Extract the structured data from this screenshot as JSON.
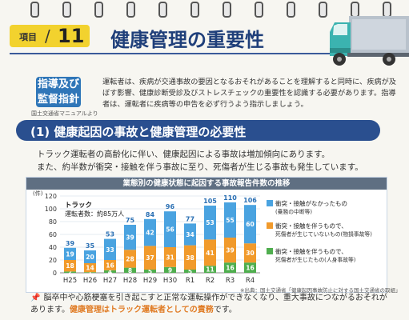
{
  "header": {
    "item_label": "項目",
    "item_number": "11",
    "title": "健康管理の重要性"
  },
  "guide": {
    "line1": "指導及び",
    "line2": "監督指針",
    "source": "国土交通省マニュアルより"
  },
  "intro_text": "運転者は、疾病が交通事故の要因となるおそれがあることを理解すると同時に、疾病が及ぼす影響、健康診断受診及びストレスチェックの重要性を認識する必要があります。指導者は、運転者に疾病等の申告を必ず行うよう指示しましょう。",
  "section": {
    "title": "(1) 健康起因の事故と健康管理の必要性"
  },
  "body": {
    "line1": "トラック運転者の高齢化に伴い、健康起因による事故は増加傾向にあります。",
    "line2": "また、約半数が衝突・接触を伴う事故に至り、死傷者が生じる事故も発生しています。"
  },
  "chart_data": {
    "type": "bar",
    "stacked": true,
    "title": "業態別の健康状態に起因する事故報告件数の推移",
    "ylabel": "(件)",
    "ylim": [
      0,
      120
    ],
    "yticks": [
      0,
      20,
      40,
      60,
      80,
      100,
      120
    ],
    "annotation_title": "トラック",
    "annotation_sub": "運転者数：約85万人",
    "categories": [
      "H25",
      "H26",
      "H27",
      "H28",
      "H29",
      "H30",
      "R1",
      "R2",
      "R3",
      "R4"
    ],
    "series": [
      {
        "name": "死傷者が生じたもの",
        "values": [
          2,
          1,
          4,
          8,
          5,
          9,
          5,
          11,
          16,
          16
        ]
      },
      {
        "name": "死傷者が生じていないもの",
        "values": [
          18,
          14,
          16,
          28,
          37,
          31,
          38,
          41,
          39,
          30
        ]
      },
      {
        "name": "衝突・接触がなかったもの",
        "values": [
          19,
          20,
          33,
          39,
          42,
          56,
          34,
          53,
          55,
          60
        ]
      }
    ],
    "totals": [
      39,
      35,
      53,
      75,
      84,
      96,
      77,
      105,
      110,
      106
    ],
    "legend": [
      {
        "main": "衝突・接触がなかったもの",
        "sub": "(乗務の中断等)",
        "color": "#4aa3e0"
      },
      {
        "main": "衝突・接触を伴うもので、",
        "sub": "死傷者が生じていないもの(物損事故等)",
        "color": "#f19a2b"
      },
      {
        "main": "衝突・接触を伴うもので、",
        "sub": "死傷者が生じたもの(人身事故等)",
        "color": "#4fae4e"
      }
    ]
  },
  "source_note": "※出典：国土交通省「健康起因事故防止に対する国土交通省の取組」",
  "bottom": {
    "pin_icon": "pin-icon",
    "text1": "脳卒中や心筋梗塞を引き起こすと正常な運転操作ができなくなり、重大事故につながるおそれがあります。",
    "text2": "健康管理はトラック運転者としての責務",
    "text3": "です。"
  }
}
